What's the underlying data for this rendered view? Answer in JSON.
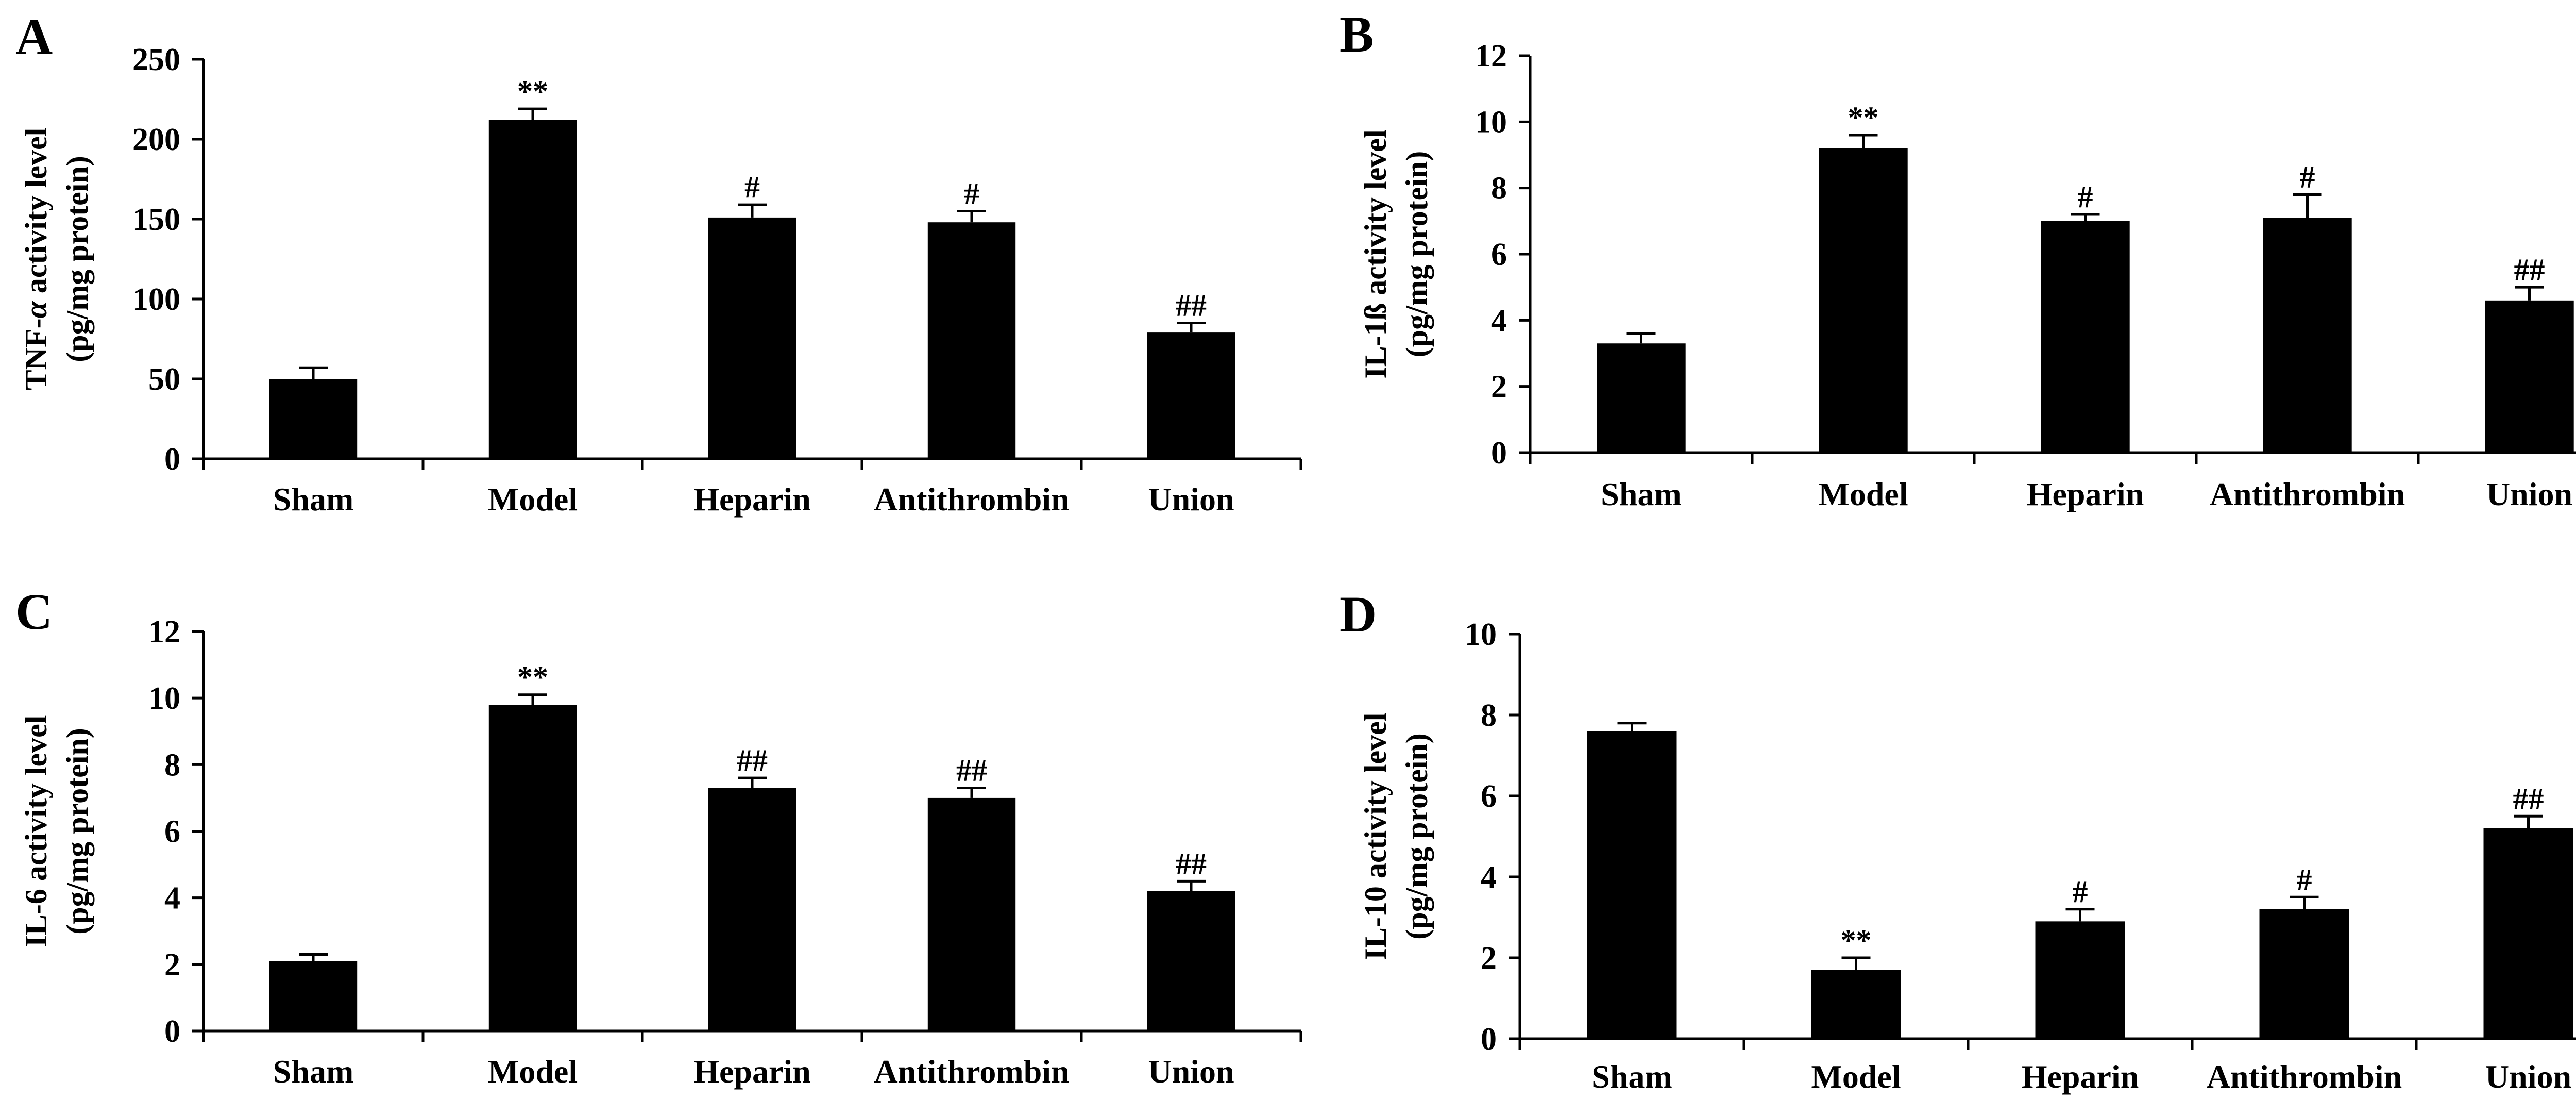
{
  "chart_data": [
    {
      "type": "bar",
      "panel": "A",
      "ylabel": [
        "TNF-α activity level",
        "(pg/mg protein)"
      ],
      "ylabel_italic": "α",
      "ylim": [
        0,
        250
      ],
      "yticks": [
        0,
        50,
        100,
        150,
        200,
        250
      ],
      "categories": [
        "Sham",
        "Model",
        "Heparin",
        "Antithrombin",
        "Union"
      ],
      "values": [
        50,
        212,
        151,
        148,
        79
      ],
      "errors": [
        7,
        7,
        8,
        7,
        6
      ],
      "annotations": [
        "",
        "**",
        "#",
        "#",
        "##"
      ],
      "color": "#000000"
    },
    {
      "type": "bar",
      "panel": "B",
      "ylabel": [
        "IL-1ß activity level",
        "(pg/mg protein)"
      ],
      "ylim": [
        0,
        12
      ],
      "yticks": [
        0,
        2,
        4,
        6,
        8,
        10,
        12
      ],
      "categories": [
        "Sham",
        "Model",
        "Heparin",
        "Antithrombin",
        "Union"
      ],
      "values": [
        3.3,
        9.2,
        7.0,
        7.1,
        4.6
      ],
      "errors": [
        0.3,
        0.4,
        0.2,
        0.7,
        0.4
      ],
      "annotations": [
        "",
        "**",
        "#",
        "#",
        "##"
      ],
      "color": "#000000"
    },
    {
      "type": "bar",
      "panel": "C",
      "ylabel": [
        "IL-6 activity level",
        "(pg/mg protein)"
      ],
      "ylim": [
        0,
        12
      ],
      "yticks": [
        0,
        2,
        4,
        6,
        8,
        10,
        12
      ],
      "categories": [
        "Sham",
        "Model",
        "Heparin",
        "Antithrombin",
        "Union"
      ],
      "values": [
        2.1,
        9.8,
        7.3,
        7.0,
        4.2
      ],
      "errors": [
        0.2,
        0.3,
        0.3,
        0.3,
        0.3
      ],
      "annotations": [
        "",
        "**",
        "##",
        "##",
        "##"
      ],
      "color": "#000000"
    },
    {
      "type": "bar",
      "panel": "D",
      "ylabel": [
        "IL-10 activity level",
        "(pg/mg protein)"
      ],
      "ylim": [
        0,
        10
      ],
      "yticks": [
        0,
        2,
        4,
        6,
        8,
        10
      ],
      "categories": [
        "Sham",
        "Model",
        "Heparin",
        "Antithrombin",
        "Union"
      ],
      "values": [
        7.6,
        1.7,
        2.9,
        3.2,
        5.2
      ],
      "errors": [
        0.2,
        0.3,
        0.3,
        0.3,
        0.3
      ],
      "annotations": [
        "",
        "**",
        "#",
        "#",
        "##"
      ],
      "color": "#000000"
    }
  ]
}
